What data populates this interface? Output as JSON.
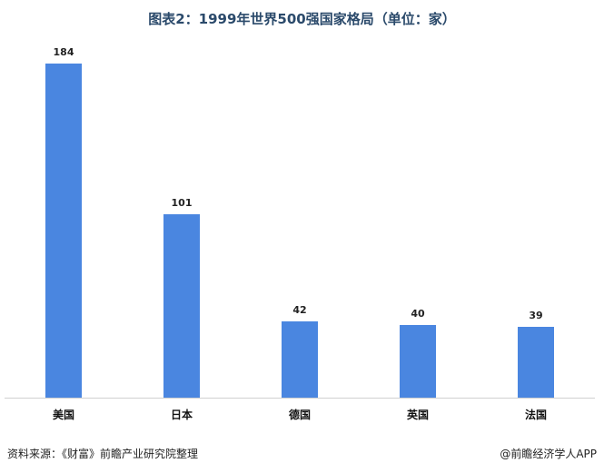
{
  "title": "图表2：1999年世界500强国家格局（单位：家）",
  "source": "资料来源：《财富》前瞻产业研究院整理",
  "brand": "@前瞻经济学人APP",
  "colors": {
    "bar": "#4a86e0",
    "axis": "#d0d0d0"
  },
  "chart_data": {
    "type": "bar",
    "title": "图表2：1999年世界500强国家格局（单位：家）",
    "xlabel": "",
    "ylabel": "",
    "categories": [
      "美国",
      "日本",
      "德国",
      "英国",
      "法国"
    ],
    "values": [
      184,
      101,
      42,
      40,
      39
    ],
    "data_labels": [
      "184",
      "101",
      "42",
      "40",
      "39"
    ],
    "ylim": [
      0,
      184
    ],
    "grid": false,
    "legend": "none"
  }
}
